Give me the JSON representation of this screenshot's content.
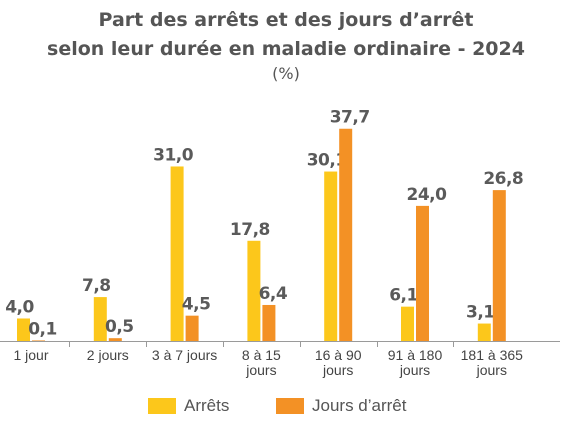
{
  "chart_data": {
    "type": "bar",
    "title_line1": "Part des arrêts et des jours d’arrêt",
    "title_line2": "selon leur durée en maladie ordinaire - 2024",
    "unit": "(%)",
    "categories": [
      [
        "1 jour"
      ],
      [
        "2 jours"
      ],
      [
        "3 à 7 jours"
      ],
      [
        "8 à 15",
        "jours"
      ],
      [
        "16 à 90",
        "jours"
      ],
      [
        "91 à 180",
        "jours"
      ],
      [
        "181 à 365",
        "jours"
      ]
    ],
    "series": [
      {
        "name": "Arrêts",
        "color": "#FCC71B",
        "values": [
          4.0,
          7.8,
          31.0,
          17.8,
          30.1,
          6.1,
          3.1
        ],
        "labels": [
          "4,0",
          "7,8",
          "31,0",
          "17,8",
          "30,1",
          "6,1",
          "3,1"
        ]
      },
      {
        "name": "Jours d’arrêt",
        "color": "#F39125",
        "values": [
          0.1,
          0.5,
          4.5,
          6.4,
          37.7,
          24.0,
          26.8
        ],
        "labels": [
          "0,1",
          "0,5",
          "4,5",
          "6,4",
          "37,7",
          "24,0",
          "26,8"
        ]
      }
    ],
    "ylim": [
      0,
      40
    ],
    "grid": false,
    "legend_position": "bottom"
  }
}
